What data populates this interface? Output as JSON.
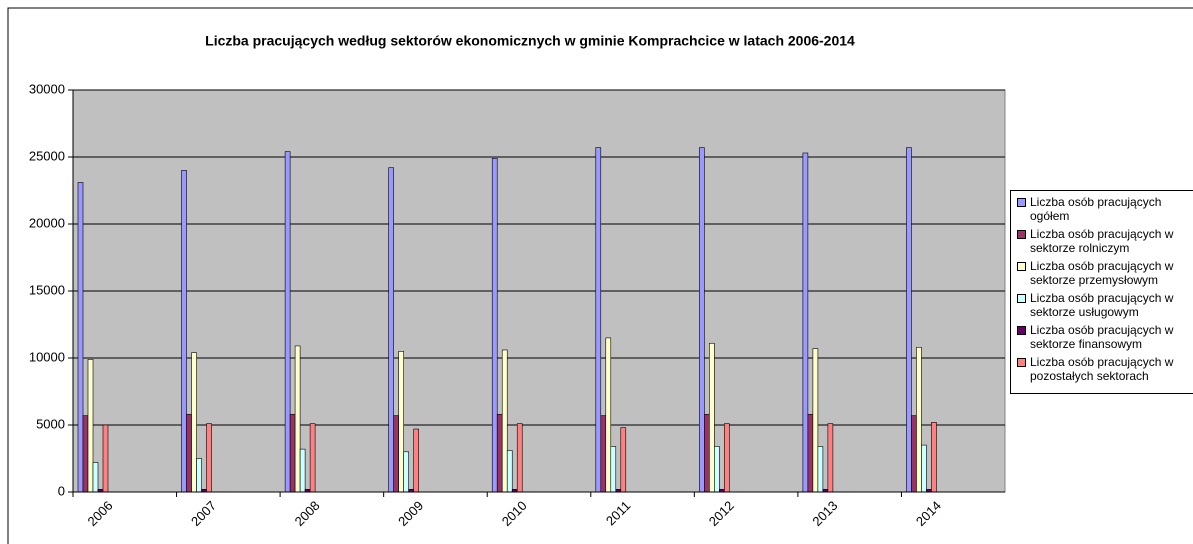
{
  "chart_data": {
    "type": "bar",
    "title": "Liczba pracujących według sektorów ekonomicznych w gminie Komprachcice w latach 2006-2014",
    "categories": [
      "2006",
      "2007",
      "2008",
      "2009",
      "2010",
      "2011",
      "2012",
      "2013",
      "2014"
    ],
    "series": [
      {
        "name": "Liczba osób pracujących ogółem",
        "color": "#9999ff",
        "values": [
          23100,
          24000,
          25400,
          24200,
          24900,
          25700,
          25700,
          25300,
          25700
        ]
      },
      {
        "name": "Liczba osób pracujących w sektorze rolniczym",
        "color": "#993366",
        "values": [
          5700,
          5800,
          5800,
          5700,
          5800,
          5700,
          5800,
          5800,
          5700
        ]
      },
      {
        "name": "Liczba osób pracujących w sektorze przemysłowym",
        "color": "#ffffcc",
        "values": [
          9900,
          10400,
          10900,
          10500,
          10600,
          11500,
          11100,
          10700,
          10800
        ]
      },
      {
        "name": "Liczba osób pracujących w sektorze usługowym",
        "color": "#ccffff",
        "values": [
          2200,
          2500,
          3200,
          3000,
          3100,
          3400,
          3400,
          3400,
          3500
        ]
      },
      {
        "name": "Liczba osób pracujących w sektorze finansowym",
        "color": "#660066",
        "values": [
          200,
          200,
          200,
          200,
          200,
          200,
          200,
          200,
          200
        ]
      },
      {
        "name": "Liczba osób pracujących w pozostałych sektorach",
        "color": "#ff8080",
        "values": [
          5000,
          5100,
          5100,
          4700,
          5100,
          4800,
          5100,
          5100,
          5200
        ]
      }
    ],
    "ylim": [
      0,
      30000
    ],
    "yticks": [
      0,
      5000,
      10000,
      15000,
      20000,
      25000,
      30000
    ],
    "grid": true,
    "plot_background": "#c0c0c0",
    "legend": "right"
  }
}
